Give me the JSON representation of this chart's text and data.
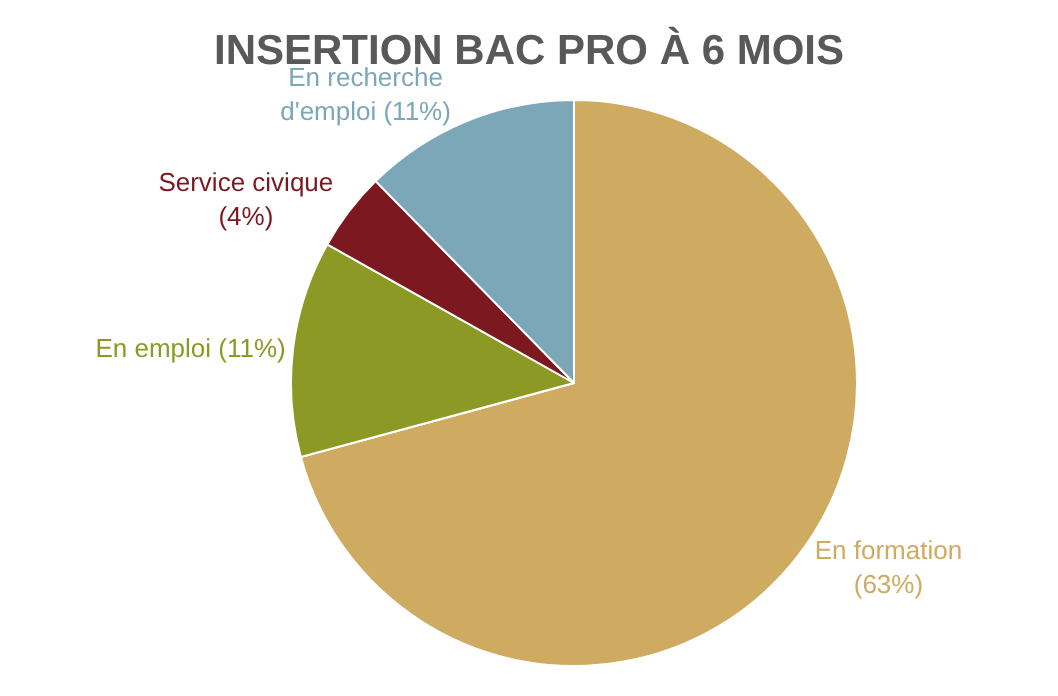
{
  "chart_data": {
    "type": "pie",
    "title": "INSERTION BAC PRO À 6 MOIS",
    "categories": [
      "En formation",
      "En emploi",
      "Service civique",
      "En recherche d'emploi"
    ],
    "values": [
      63,
      11,
      4,
      11
    ],
    "value_labels": [
      "(63%)",
      "(11%)",
      "(4%)",
      "(11%)"
    ],
    "colors": [
      "#cfab61",
      "#8c9a25",
      "#7b1820",
      "#7ba7b8"
    ],
    "legend": false
  }
}
